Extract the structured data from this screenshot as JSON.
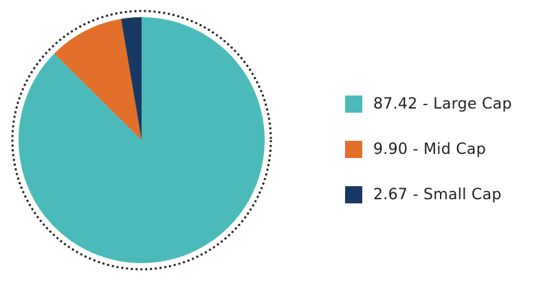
{
  "chart_data": {
    "type": "pie",
    "title": "",
    "slices": [
      {
        "label": "87.42 - Large Cap",
        "name": "Large Cap",
        "value": 87.42,
        "color": "#4ABBBA"
      },
      {
        "label": "9.90 - Mid Cap",
        "name": "Mid Cap",
        "value": 9.9,
        "color": "#E3702A"
      },
      {
        "label": "2.67 - Small Cap",
        "name": "Small Cap",
        "value": 2.67,
        "color": "#183A62"
      }
    ],
    "start_angle": "top, clockwise",
    "legend_position": "right",
    "outer_ring": "dotted circle"
  }
}
